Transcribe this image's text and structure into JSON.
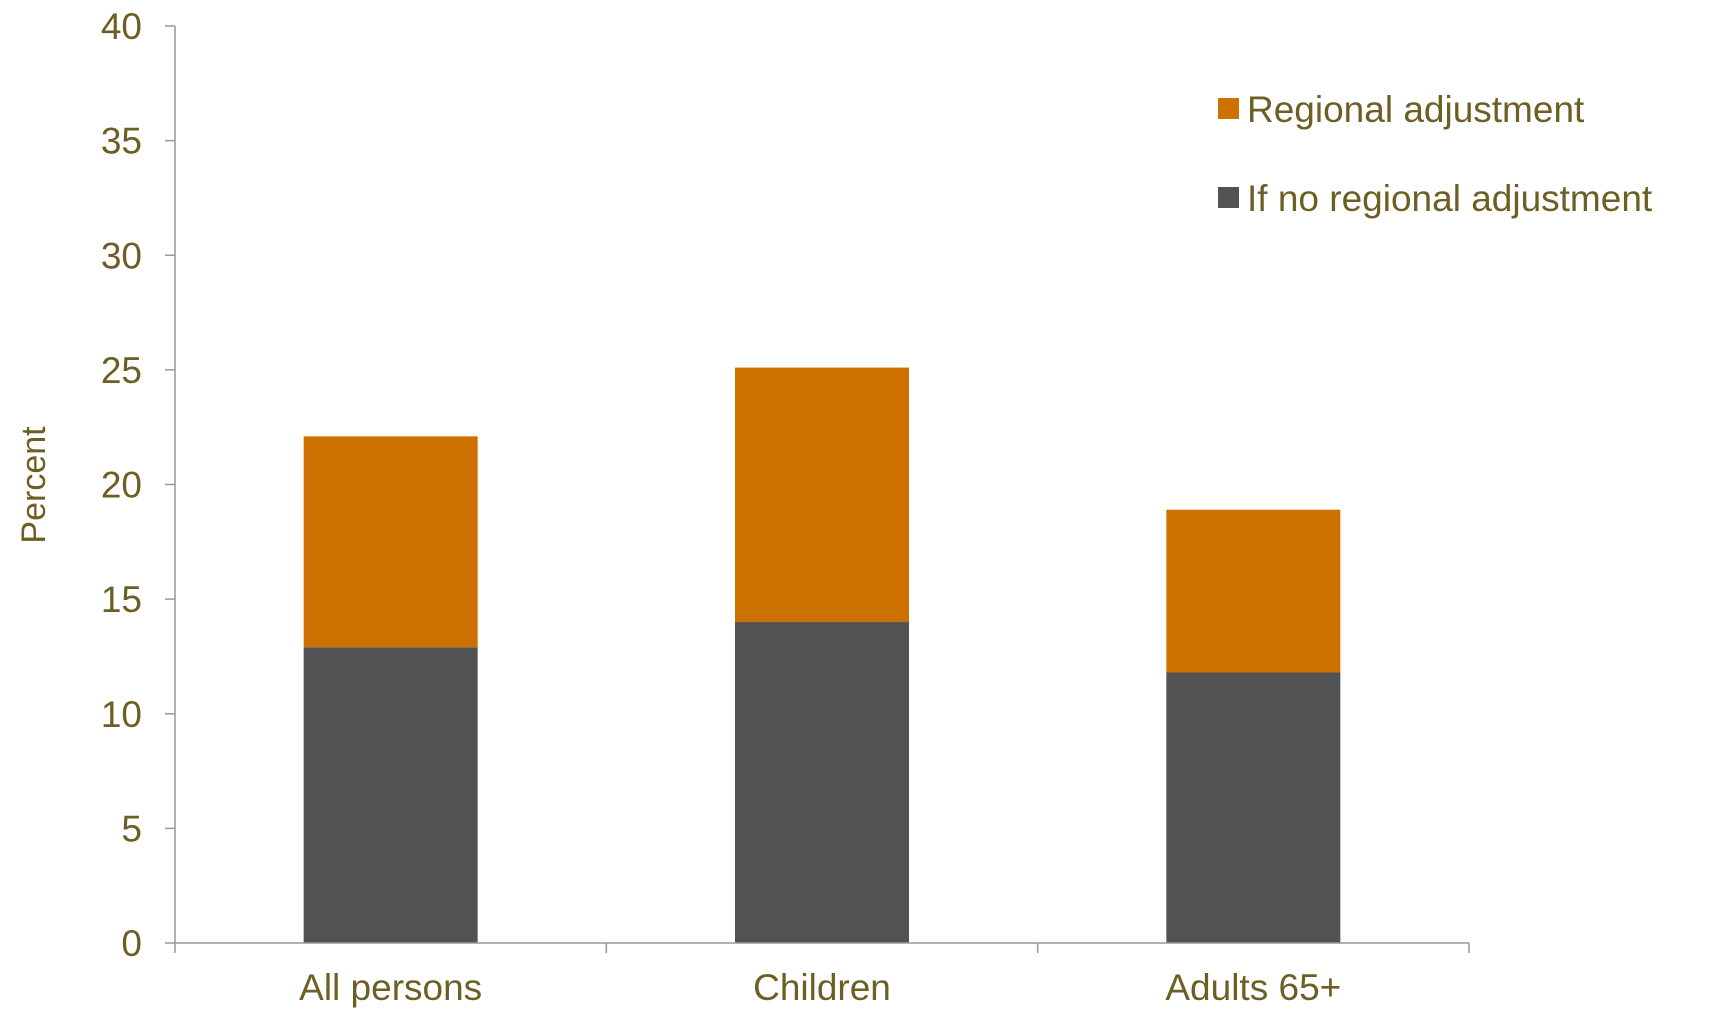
{
  "chart_data": {
    "type": "bar",
    "stacked": true,
    "categories": [
      "All persons",
      "Children",
      "Adults 65+"
    ],
    "series": [
      {
        "name": "If no regional adjustment",
        "values": [
          12.9,
          14.0,
          11.8
        ],
        "color": "#525254"
      },
      {
        "name": "Regional adjustment",
        "values": [
          9.2,
          11.1,
          7.1
        ],
        "color": "#cc7000"
      }
    ],
    "ylabel": "Percent",
    "xlabel": "",
    "ylim": [
      0,
      40
    ],
    "yticks": [
      "0",
      "5",
      "10",
      "15",
      "20",
      "25",
      "30",
      "35",
      "40"
    ],
    "grid": false,
    "legend": {
      "position": "top-right",
      "entries": [
        "Regional adjustment",
        "If no regional adjustment"
      ]
    },
    "text_color": "#6d5f24",
    "axis_color": "#999999"
  }
}
